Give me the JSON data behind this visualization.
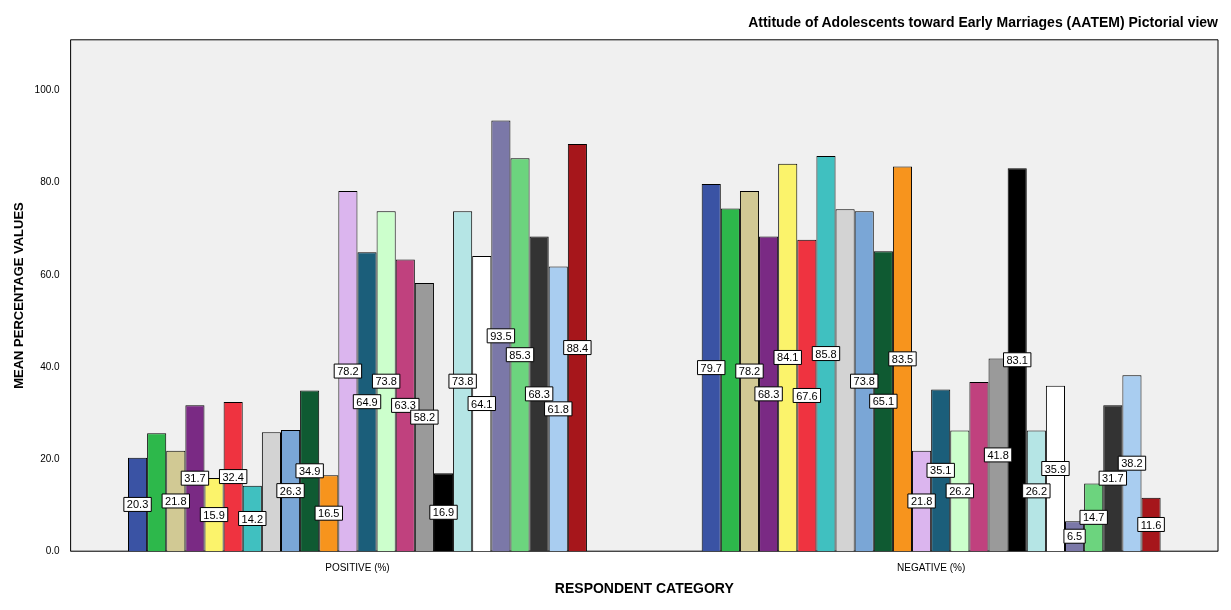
{
  "chart_data": {
    "type": "bar",
    "title": "Attitude of Adolescents toward Early Marriages (AATEM) Pictorial view",
    "xlabel": "RESPONDENT CATEGORY",
    "ylabel": "MEAN PERCENTAGE VALUES",
    "categories": [
      "POSITIVE (%)",
      "NEGATIVE (%)"
    ],
    "ylim": [
      0,
      111
    ],
    "yticks": [
      {
        "value": 0,
        "label": "0.0"
      },
      {
        "value": 20,
        "label": "20.0"
      },
      {
        "value": 40,
        "label": "40.0"
      },
      {
        "value": 60,
        "label": "60.0"
      },
      {
        "value": 80,
        "label": "80.0"
      },
      {
        "value": 100,
        "label": "100.0"
      }
    ],
    "grid": false,
    "legend": false,
    "series": [
      {
        "color": "#3a53a4",
        "values": [
          20.3,
          79.7
        ],
        "value_labels": [
          "20.3",
          "79.7"
        ]
      },
      {
        "color": "#2db84b",
        "values": [
          25.6,
          74.4
        ],
        "value_labels": [
          null,
          null
        ]
      },
      {
        "color": "#d1c994",
        "values": [
          21.8,
          78.2
        ],
        "value_labels": [
          "21.8",
          "78.2"
        ]
      },
      {
        "color": "#7a2a84",
        "values": [
          31.7,
          68.3
        ],
        "value_labels": [
          "31.7",
          "68.3"
        ]
      },
      {
        "color": "#fbf36b",
        "values": [
          15.9,
          84.1
        ],
        "value_labels": [
          "15.9",
          "84.1"
        ]
      },
      {
        "color": "#ef3340",
        "values": [
          32.4,
          67.6
        ],
        "value_labels": [
          "32.4",
          "67.6"
        ]
      },
      {
        "color": "#40c0c0",
        "values": [
          14.2,
          85.8
        ],
        "value_labels": [
          "14.2",
          "85.8"
        ]
      },
      {
        "color": "#d3d3d3",
        "values": [
          25.8,
          74.2
        ],
        "value_labels": [
          null,
          null
        ]
      },
      {
        "color": "#7aa6d6",
        "values": [
          26.3,
          73.8
        ],
        "value_labels": [
          "26.3",
          "73.8"
        ]
      },
      {
        "color": "#0f5a32",
        "values": [
          34.9,
          65.1
        ],
        "value_labels": [
          "34.9",
          "65.1"
        ]
      },
      {
        "color": "#f7941d",
        "values": [
          16.5,
          83.5
        ],
        "value_labels": [
          "16.5",
          "83.5"
        ]
      },
      {
        "color": "#dbb5ee",
        "values": [
          78.2,
          21.8
        ],
        "value_labels": [
          "78.2",
          "21.8"
        ]
      },
      {
        "color": "#1b5e7a",
        "values": [
          64.9,
          35.1
        ],
        "value_labels": [
          "64.9",
          "35.1"
        ]
      },
      {
        "color": "#ccffcc",
        "values": [
          73.8,
          26.2
        ],
        "value_labels": [
          "73.8",
          "26.2"
        ]
      },
      {
        "color": "#c0417e",
        "values": [
          63.3,
          36.7
        ],
        "value_labels": [
          "63.3",
          null
        ]
      },
      {
        "color": "#9a9a9a",
        "values": [
          58.2,
          41.8
        ],
        "value_labels": [
          "58.2",
          "41.8"
        ]
      },
      {
        "color": "#000000",
        "values": [
          16.9,
          83.1
        ],
        "value_labels": [
          "16.9",
          "83.1"
        ]
      },
      {
        "color": "#b5e5e5",
        "values": [
          73.8,
          26.2
        ],
        "value_labels": [
          "73.8",
          "26.2"
        ]
      },
      {
        "color": "#ffffff",
        "values": [
          64.1,
          35.9
        ],
        "value_labels": [
          "64.1",
          "35.9"
        ]
      },
      {
        "color": "#7b78a8",
        "values": [
          93.5,
          6.5
        ],
        "value_labels": [
          "93.5",
          "6.5"
        ]
      },
      {
        "color": "#6cd47e",
        "values": [
          85.3,
          14.7
        ],
        "value_labels": [
          "85.3",
          "14.7"
        ]
      },
      {
        "color": "#333333",
        "values": [
          68.3,
          31.7
        ],
        "value_labels": [
          "68.3",
          "31.7"
        ]
      },
      {
        "color": "#a9cdf0",
        "values": [
          61.8,
          38.2
        ],
        "value_labels": [
          "61.8",
          "38.2"
        ]
      },
      {
        "color": "#a6161b",
        "values": [
          88.4,
          11.6
        ],
        "value_labels": [
          "88.4",
          "11.6"
        ]
      }
    ]
  }
}
